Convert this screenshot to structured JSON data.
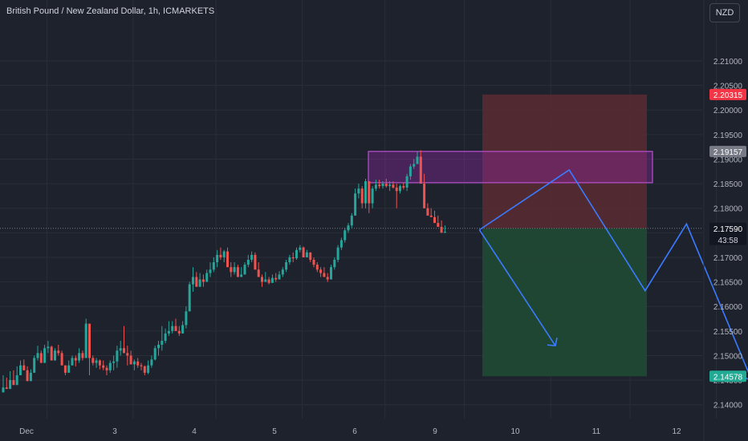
{
  "header": {
    "symbol_title": "British Pound / New Zealand Dollar, 1h, ICMARKETS",
    "currency_button": "NZD"
  },
  "chart_data": {
    "type": "candlestick",
    "ylim": [
      2.1375,
      2.2175
    ],
    "y_ticks": [
      "2.21000",
      "2.20500",
      "2.20000",
      "2.19500",
      "2.19000",
      "2.18500",
      "2.18000",
      "2.17500",
      "2.17000",
      "2.16500",
      "2.16000",
      "2.15500",
      "2.15000",
      "2.14500",
      "2.14000"
    ],
    "x_ticks": [
      "Dec",
      "3",
      "4",
      "5",
      "6",
      "9",
      "10",
      "11",
      "12"
    ],
    "price_labels": [
      {
        "text": "2.20315",
        "color": "#f23645",
        "value": 2.20315
      },
      {
        "text": "2.19157",
        "color": "#787b86",
        "value": 2.19157
      },
      {
        "text": "2.17590",
        "color": "#131722",
        "value": 2.1759,
        "countdown": "43:58"
      },
      {
        "text": "2.14578",
        "color": "#22ab94",
        "value": 2.14578
      }
    ],
    "colors": {
      "up": "#26a69a",
      "down": "#ef5350",
      "background": "#1e222d",
      "grid": "#2a2e39",
      "arrow": "#3a7bff",
      "stop_zone": "#5a2a33",
      "target_zone": "#1f4a33",
      "supply_box": "#9c27b0"
    },
    "series": [
      {
        "name": "GBP/NZD",
        "points": [
          [
            2.1425,
            2.146,
            2.1435
          ],
          [
            2.144,
            2.1455,
            2.1432
          ],
          [
            2.1445,
            2.1468,
            2.145
          ],
          [
            2.145,
            2.147,
            2.144
          ],
          [
            2.145,
            2.1478,
            2.146
          ],
          [
            2.1462,
            2.149,
            2.148
          ],
          [
            2.148,
            2.1492,
            2.147
          ],
          [
            2.146,
            2.1478,
            2.1448
          ],
          [
            2.1448,
            2.1472,
            2.1465
          ],
          [
            2.147,
            2.15,
            2.1495
          ],
          [
            2.149,
            2.152,
            2.1505
          ],
          [
            2.15,
            2.151,
            2.1485
          ],
          [
            2.1485,
            2.1522,
            2.1515
          ],
          [
            2.1505,
            2.153,
            2.1518
          ],
          [
            2.151,
            2.152,
            2.149
          ],
          [
            2.149,
            2.1515,
            2.151
          ],
          [
            2.15,
            2.1522,
            2.1505
          ],
          [
            2.149,
            2.151,
            2.148
          ],
          [
            2.146,
            2.148,
            2.1465
          ],
          [
            2.1475,
            2.149,
            2.148
          ],
          [
            2.148,
            2.15,
            2.1495
          ],
          [
            2.1478,
            2.15,
            2.149
          ],
          [
            2.1485,
            2.1515,
            2.1505
          ],
          [
            2.149,
            2.151,
            2.1495
          ],
          [
            2.1495,
            2.1575,
            2.1565
          ],
          [
            2.146,
            2.152,
            2.1495
          ],
          [
            2.148,
            2.15,
            2.1485
          ],
          [
            2.1475,
            2.1495,
            2.149
          ],
          [
            2.1472,
            2.1492,
            2.148
          ],
          [
            2.147,
            2.149,
            2.1475
          ],
          [
            2.146,
            2.148,
            2.147
          ],
          [
            2.1465,
            2.149,
            2.1485
          ],
          [
            2.147,
            2.15,
            2.1488
          ],
          [
            2.1475,
            2.152,
            2.151
          ],
          [
            2.15,
            2.153,
            2.1515
          ],
          [
            2.151,
            2.156,
            2.1505
          ],
          [
            2.148,
            2.152,
            2.15
          ],
          [
            2.149,
            2.151,
            2.1482
          ],
          [
            2.147,
            2.1492,
            2.1488
          ],
          [
            2.1475,
            2.1495,
            2.148
          ],
          [
            2.147,
            2.1485,
            2.1478
          ],
          [
            2.146,
            2.148,
            2.1465
          ],
          [
            2.1462,
            2.149,
            2.148
          ],
          [
            2.1475,
            2.15,
            2.1492
          ],
          [
            2.149,
            2.152,
            2.1515
          ],
          [
            2.15,
            2.153,
            2.1522
          ],
          [
            2.151,
            2.156,
            2.153
          ],
          [
            2.1525,
            2.1555,
            2.1545
          ],
          [
            2.154,
            2.157,
            2.155
          ],
          [
            2.1545,
            2.157,
            2.156
          ],
          [
            2.156,
            2.1575,
            2.155
          ],
          [
            2.154,
            2.156,
            2.1545
          ],
          [
            2.155,
            2.157,
            2.1562
          ],
          [
            2.1555,
            2.16,
            2.159
          ],
          [
            2.159,
            2.165,
            2.1645
          ],
          [
            2.163,
            2.168,
            2.166
          ],
          [
            2.165,
            2.167,
            2.164
          ],
          [
            2.1645,
            2.1668,
            2.1655
          ],
          [
            2.164,
            2.1665,
            2.165
          ],
          [
            2.165,
            2.1675,
            2.1668
          ],
          [
            2.166,
            2.169,
            2.1675
          ],
          [
            2.167,
            2.17,
            2.169
          ],
          [
            2.168,
            2.1715,
            2.1705
          ],
          [
            2.1695,
            2.172,
            2.17
          ],
          [
            2.169,
            2.1715,
            2.1712
          ],
          [
            2.17,
            2.172,
            2.168
          ],
          [
            2.166,
            2.169,
            2.167
          ],
          [
            2.1665,
            2.169,
            2.168
          ],
          [
            2.167,
            2.1685,
            2.166
          ],
          [
            2.166,
            2.168,
            2.1665
          ],
          [
            2.1665,
            2.169,
            2.1685
          ],
          [
            2.168,
            2.1705,
            2.1695
          ],
          [
            2.169,
            2.1712,
            2.1705
          ],
          [
            2.1695,
            2.171,
            2.1675
          ],
          [
            2.167,
            2.169,
            2.166
          ],
          [
            2.164,
            2.1665,
            2.165
          ],
          [
            2.165,
            2.167,
            2.1655
          ],
          [
            2.1645,
            2.166,
            2.1648
          ],
          [
            2.1648,
            2.1665,
            2.1658
          ],
          [
            2.165,
            2.1668,
            2.1655
          ],
          [
            2.1655,
            2.1672,
            2.1665
          ],
          [
            2.166,
            2.168,
            2.1675
          ],
          [
            2.167,
            2.1695,
            2.169
          ],
          [
            2.1685,
            2.1705,
            2.17
          ],
          [
            2.169,
            2.171,
            2.1698
          ],
          [
            2.1695,
            2.172,
            2.1715
          ],
          [
            2.171,
            2.1725,
            2.172
          ],
          [
            2.1705,
            2.1722,
            2.17
          ],
          [
            2.17,
            2.1715,
            2.171
          ],
          [
            2.169,
            2.171,
            2.1695
          ],
          [
            2.168,
            2.17,
            2.1685
          ],
          [
            2.167,
            2.169,
            2.1675
          ],
          [
            2.166,
            2.168,
            2.1668
          ],
          [
            2.1665,
            2.168,
            2.166
          ],
          [
            2.165,
            2.1668,
            2.1655
          ],
          [
            2.1655,
            2.1685,
            2.168
          ],
          [
            2.1675,
            2.17,
            2.1695
          ],
          [
            2.169,
            2.1725,
            2.172
          ],
          [
            2.1715,
            2.174,
            2.1735
          ],
          [
            2.173,
            2.176,
            2.1755
          ],
          [
            2.175,
            2.177,
            2.1765
          ],
          [
            2.176,
            2.179,
            2.1785
          ],
          [
            2.179,
            2.184,
            2.183
          ],
          [
            2.182,
            2.185,
            2.184
          ],
          [
            2.18,
            2.1845,
            2.181
          ],
          [
            2.18,
            2.186,
            2.1855
          ],
          [
            2.179,
            2.185,
            2.181
          ],
          [
            2.18,
            2.1845,
            2.184
          ],
          [
            2.1835,
            2.1858,
            2.1848
          ],
          [
            2.184,
            2.1858,
            2.1845
          ],
          [
            2.184,
            2.1855,
            2.185
          ],
          [
            2.1842,
            2.186,
            2.1845
          ],
          [
            2.1835,
            2.1855,
            2.1848
          ],
          [
            2.184,
            2.1855,
            2.1842
          ],
          [
            2.18,
            2.185,
            2.1835
          ],
          [
            2.183,
            2.1848,
            2.1845
          ],
          [
            2.1838,
            2.1852,
            2.1842
          ],
          [
            2.1835,
            2.187,
            2.1865
          ],
          [
            2.1858,
            2.189,
            2.1885
          ],
          [
            2.188,
            2.19,
            2.189
          ],
          [
            2.189,
            2.1915,
            2.1905
          ],
          [
            2.191,
            2.1918,
            2.185
          ],
          [
            2.185,
            2.187,
            2.18
          ],
          [
            2.179,
            2.181,
            2.1785
          ],
          [
            2.1785,
            2.18,
            2.1782
          ],
          [
            2.1782,
            2.1795,
            2.177
          ],
          [
            2.177,
            2.1785,
            2.1762
          ],
          [
            2.176,
            2.1775,
            2.175
          ],
          [
            2.1759,
            2.1765,
            2.1752
          ]
        ]
      }
    ],
    "projection": [
      {
        "x_index": 138,
        "y": 2.1756
      },
      {
        "x_index": 164,
        "y": 2.1878
      },
      {
        "x_index": 186,
        "y": 2.1632
      },
      {
        "x_index": 198,
        "y": 2.1768
      },
      {
        "x_index": 217,
        "y": 2.1448
      }
    ],
    "projection_alt": [
      {
        "x_index": 138,
        "y": 2.1756
      },
      {
        "x_index": 160,
        "y": 2.152
      }
    ]
  }
}
